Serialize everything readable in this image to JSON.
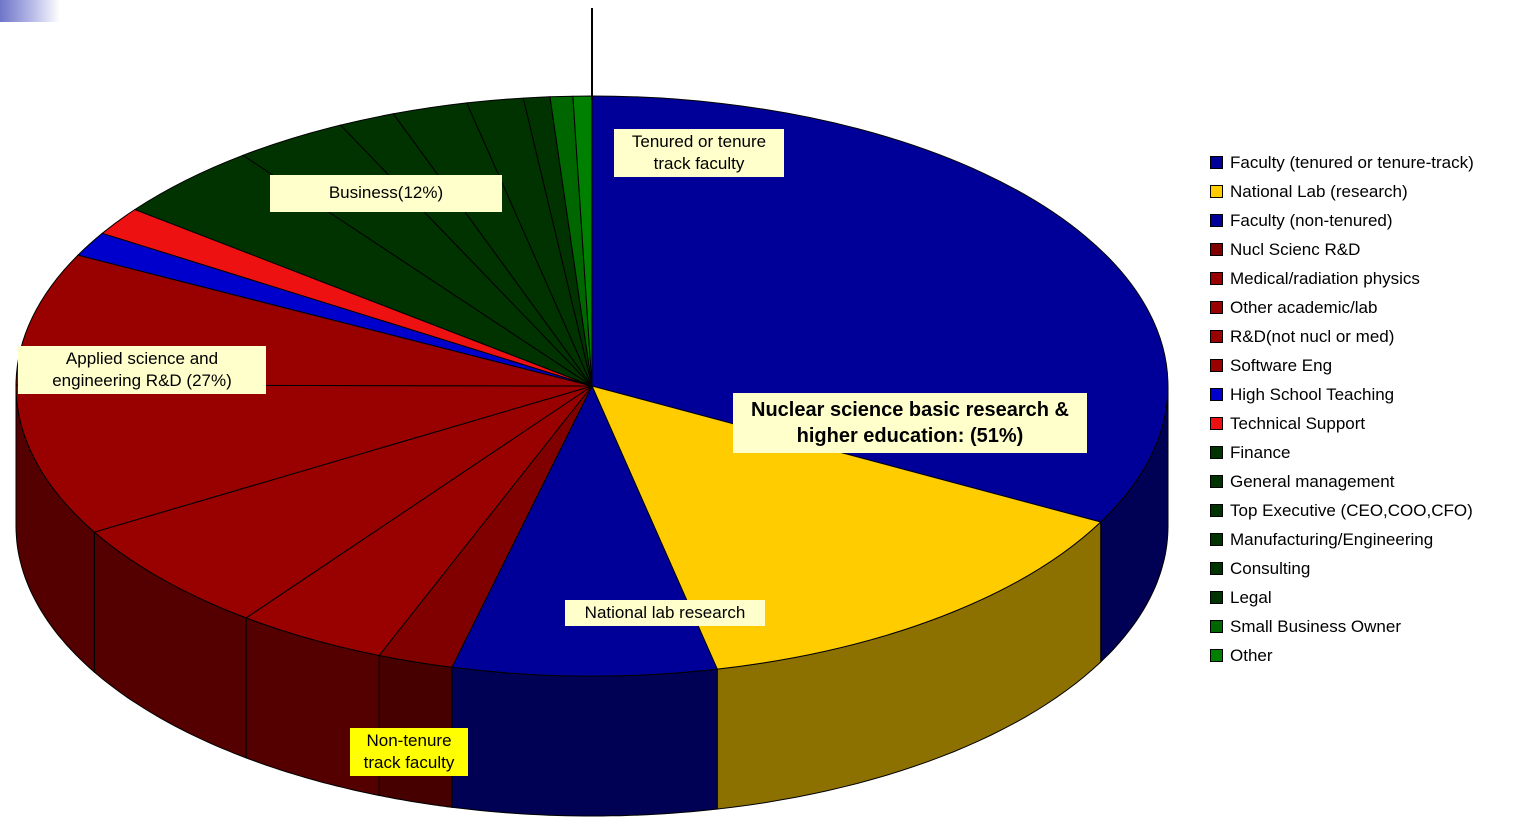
{
  "chart_data": {
    "type": "pie",
    "three_d": true,
    "slices": [
      {
        "name": "Faculty (tenured or tenure-track)",
        "value": 31,
        "color": "#000099"
      },
      {
        "name": "National Lab (research)",
        "value": 13,
        "color": "#ffcc00"
      },
      {
        "name": "Faculty (non-tenured)",
        "value": 7,
        "color": "#000099"
      },
      {
        "name": "Nucl Scienc R&D",
        "value": 2,
        "color": "#800000"
      },
      {
        "name": "Medical/radiation physics",
        "value": 4,
        "color": "#990000"
      },
      {
        "name": "Other academic/lab",
        "value": 6,
        "color": "#990000"
      },
      {
        "name": "R&D(not nucl or med)",
        "value": 8,
        "color": "#990000"
      },
      {
        "name": "Software Eng",
        "value": 7,
        "color": "#990000"
      },
      {
        "name": "High School Teaching",
        "value": 1.3,
        "color": "#0000cc"
      },
      {
        "name": "Technical Support",
        "value": 1.5,
        "color": "#ee1111"
      },
      {
        "name": "Finance",
        "value": 4,
        "color": "#003300"
      },
      {
        "name": "General management",
        "value": 3,
        "color": "#003300"
      },
      {
        "name": "Top Executive (CEO,COO,CFO)",
        "value": 1.5,
        "color": "#003300"
      },
      {
        "name": "Manufacturing/Engineering",
        "value": 2,
        "color": "#003300"
      },
      {
        "name": "Consulting",
        "value": 1.5,
        "color": "#003300"
      },
      {
        "name": "Legal",
        "value": 0.7,
        "color": "#003300"
      },
      {
        "name": "Small Business Owner",
        "value": 0.6,
        "color": "#006600"
      },
      {
        "name": "Other",
        "value": 0.5,
        "color": "#008000"
      }
    ],
    "legend_placement": "right",
    "annotations": [
      {
        "id": "tenured",
        "text": "Tenured or tenure track faculty"
      },
      {
        "id": "business",
        "text": "Business(12%)"
      },
      {
        "id": "applied",
        "text": "Applied science and engineering R&D (27%)"
      },
      {
        "id": "nuclear",
        "text": "Nuclear science basic research & higher education: (51%)"
      },
      {
        "id": "national",
        "text": "National lab research"
      },
      {
        "id": "nontenure",
        "text": "Non-tenure track faculty"
      }
    ]
  }
}
